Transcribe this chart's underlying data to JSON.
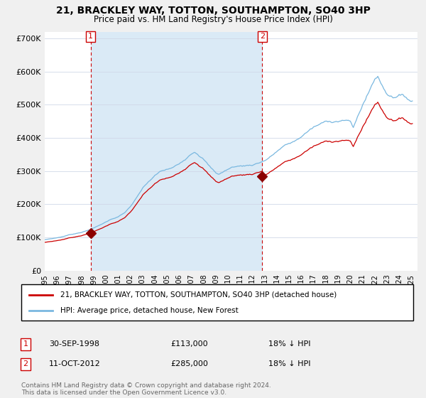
{
  "title": "21, BRACKLEY WAY, TOTTON, SOUTHAMPTON, SO40 3HP",
  "subtitle": "Price paid vs. HM Land Registry's House Price Index (HPI)",
  "ylabel_ticks": [
    "£0",
    "£100K",
    "£200K",
    "£300K",
    "£400K",
    "£500K",
    "£600K",
    "£700K"
  ],
  "ylim": [
    0,
    720000
  ],
  "xlim_start": 1995.0,
  "xlim_end": 2025.5,
  "hpi_color": "#7ab8e0",
  "hpi_fill_color": "#daeaf6",
  "price_color": "#cc0000",
  "vline_color": "#cc0000",
  "marker_color": "#8b0000",
  "sale1_x": 1998.75,
  "sale1_y": 113000,
  "sale1_label": "1",
  "sale1_date": "30-SEP-1998",
  "sale1_price": "£113,000",
  "sale1_hpi": "18% ↓ HPI",
  "sale2_x": 2012.79,
  "sale2_y": 285000,
  "sale2_label": "2",
  "sale2_date": "11-OCT-2012",
  "sale2_price": "£285,000",
  "sale2_hpi": "18% ↓ HPI",
  "legend_label1": "21, BRACKLEY WAY, TOTTON, SOUTHAMPTON, SO40 3HP (detached house)",
  "legend_label2": "HPI: Average price, detached house, New Forest",
  "footer": "Contains HM Land Registry data © Crown copyright and database right 2024.\nThis data is licensed under the Open Government Licence v3.0.",
  "bg_color": "#f0f0f0",
  "plot_bg_color": "#ffffff",
  "grid_color": "#d0d8e8"
}
